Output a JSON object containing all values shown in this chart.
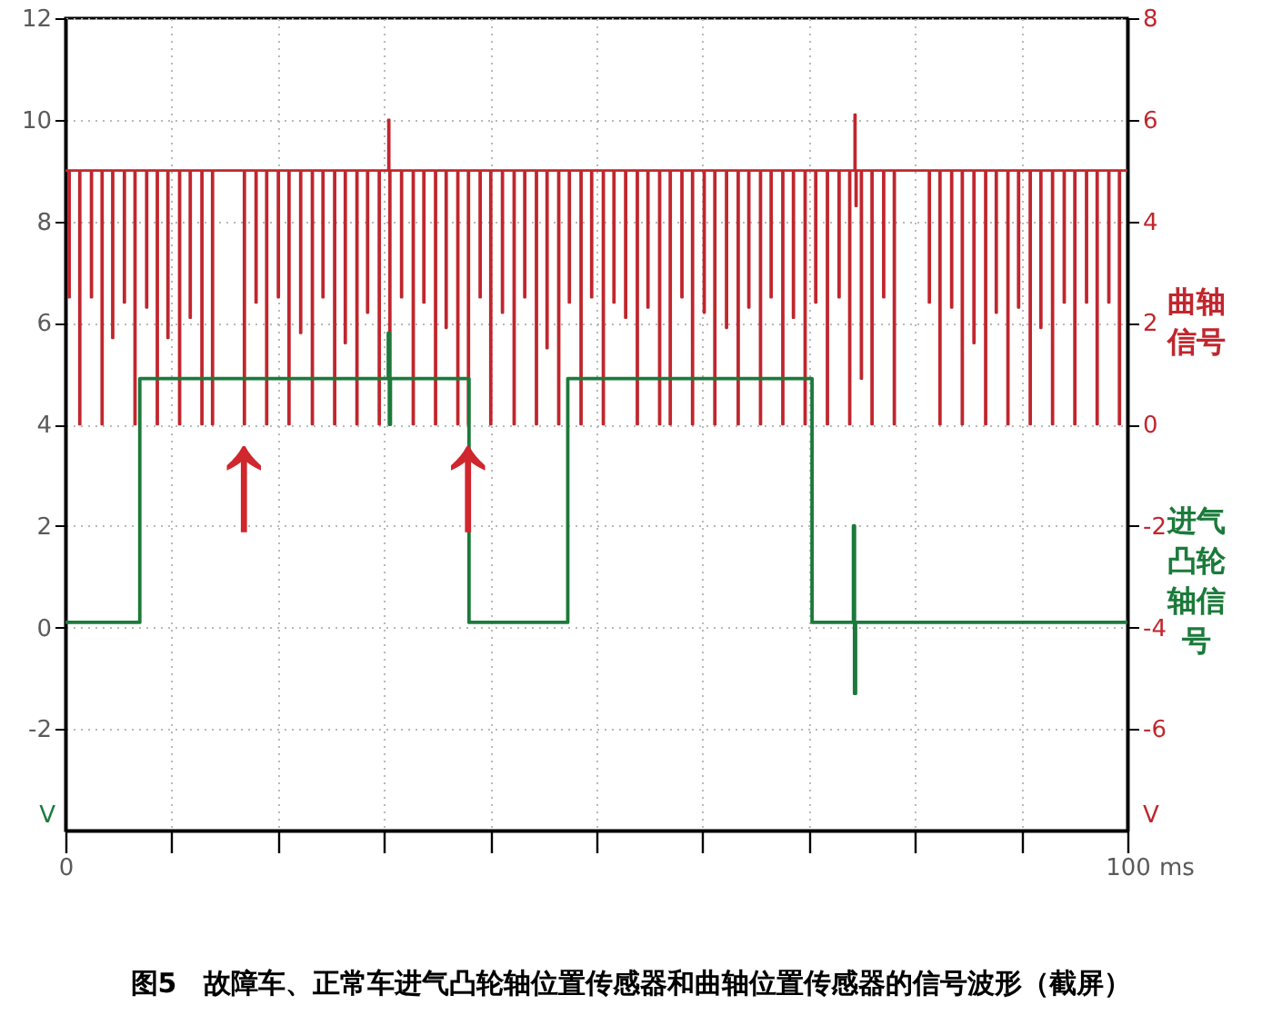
{
  "chart_data": {
    "type": "step",
    "title": "图5　故障车、正常车进气凸轮轴位置传感器和曲轴位置传感器的信号波形（截屏）",
    "xlabel": "ms",
    "ylabel": "V",
    "y2label": "V",
    "xlim": [
      0,
      100
    ],
    "xticks": [
      0,
      {
        "value": 10,
        "label": null
      },
      {
        "value": 20,
        "label": null
      },
      {
        "value": 30,
        "label": null
      },
      {
        "value": 40,
        "label": null
      },
      {
        "value": 50,
        "label": null
      },
      {
        "value": 60,
        "label": null
      },
      {
        "value": 70,
        "label": null
      },
      {
        "value": 80,
        "label": null
      },
      {
        "value": 90,
        "label": null
      },
      100
    ],
    "ylim": [
      -4,
      12
    ],
    "yticks": [
      -2,
      0,
      2,
      4,
      6,
      8,
      10,
      12
    ],
    "y2lim": [
      -8,
      8
    ],
    "y2ticks": [
      -6,
      -4,
      -2,
      0,
      2,
      4,
      6,
      8
    ],
    "grid": true,
    "legend": "right",
    "annotations": [
      {
        "text": "↑",
        "x": 16.8,
        "y": 4.0
      },
      {
        "text": "↑",
        "x": 37.9,
        "y": 4.0
      }
    ],
    "series": [
      {
        "name": "曲轴信号",
        "color": "#c0262d",
        "axis": "y2",
        "x": [
          0,
          0.3,
          0.4,
          1.3,
          1.4,
          2.4,
          2.5,
          3.4,
          3.5,
          4.4,
          4.5,
          5.5,
          5.6,
          6.5,
          6.6,
          7.6,
          7.7,
          8.6,
          8.7,
          9.6,
          9.7,
          10.7,
          10.8,
          11.7,
          11.8,
          12.8,
          12.9,
          13.8,
          13.9,
          16.8,
          16.9,
          17.9,
          18.0,
          18.9,
          19.0,
          20.0,
          20.1,
          21.0,
          21.1,
          22.1,
          22.2,
          23.2,
          23.3,
          24.2,
          24.3,
          25.3,
          25.4,
          26.3,
          26.4,
          27.4,
          27.5,
          28.4,
          28.5,
          29.5,
          29.6,
          30.4,
          30.5,
          30.6,
          31.6,
          31.7,
          32.7,
          32.8,
          33.7,
          33.8,
          34.8,
          34.9,
          35.8,
          35.9,
          36.9,
          37.0,
          37.9,
          38.0,
          39.0,
          39.1,
          40.0,
          40.1,
          41.1,
          41.2,
          42.2,
          42.3,
          43.2,
          43.3,
          44.3,
          44.4,
          45.3,
          45.4,
          46.4,
          46.5,
          47.4,
          47.5,
          48.5,
          48.6,
          49.5,
          49.6,
          50.6,
          50.7,
          51.6,
          51.7,
          52.7,
          52.8,
          53.8,
          53.9,
          54.8,
          54.9,
          55.9,
          56.0,
          56.9,
          57.0,
          58.0,
          58.1,
          59.0,
          59.1,
          60.1,
          60.2,
          61.1,
          61.2,
          62.2,
          62.3,
          63.3,
          63.4,
          64.3,
          64.4,
          65.4,
          65.5,
          66.4,
          66.5,
          67.5,
          67.6,
          68.5,
          68.6,
          69.6,
          69.7,
          70.6,
          70.7,
          71.7,
          71.8,
          72.8,
          72.9,
          73.8,
          73.9,
          74.3,
          74.4,
          74.5,
          74.9,
          75.0,
          75.9,
          76.0,
          77.0,
          77.1,
          78.0,
          78.1,
          81.3,
          81.4,
          82.3,
          82.4,
          83.4,
          83.5,
          84.4,
          84.5,
          85.5,
          85.6,
          86.6,
          86.7,
          87.6,
          87.7,
          88.7,
          88.8,
          89.7,
          89.8,
          90.8,
          90.9,
          91.8,
          91.9,
          92.9,
          93.0,
          94.0,
          94.1,
          95.0,
          95.1,
          96.1,
          96.2,
          97.1,
          97.2,
          98.2,
          98.3,
          99.2,
          99.3,
          100
        ],
        "values": [
          5.0,
          2.5,
          5.0,
          0,
          5.0,
          2.5,
          5.0,
          0,
          5.0,
          1.7,
          5.0,
          2.4,
          5.0,
          0,
          5.0,
          2.3,
          5.0,
          0,
          5.0,
          1.7,
          5.0,
          0,
          5.0,
          2.1,
          5.0,
          0,
          5.0,
          0,
          5.0,
          0,
          5.0,
          2.4,
          5.0,
          0,
          5.0,
          2.5,
          5.0,
          0,
          5.0,
          1.8,
          5.0,
          0,
          5.0,
          2.5,
          5.0,
          0,
          5.0,
          1.6,
          5.0,
          0,
          5.0,
          2.2,
          5.0,
          0,
          5.0,
          6.0,
          0,
          5.0,
          2.5,
          5.0,
          0,
          5.0,
          2.4,
          5.0,
          0,
          5.0,
          1.9,
          5.0,
          0,
          5.0,
          0,
          5.0,
          2.5,
          5.0,
          0,
          5.0,
          2.2,
          5.0,
          0,
          5.0,
          2.5,
          5.0,
          0,
          5.0,
          1.5,
          5.0,
          0,
          5.0,
          2.4,
          5.0,
          0,
          5.0,
          2.5,
          5.0,
          0,
          5.0,
          2.4,
          5.0,
          2.1,
          5.0,
          0,
          5.0,
          2.3,
          5.0,
          0,
          5.0,
          0,
          5.0,
          2.5,
          5.0,
          0,
          5.0,
          2.2,
          5.0,
          0,
          5.0,
          1.9,
          5.0,
          0,
          5.0,
          2.3,
          5.0,
          0,
          5.0,
          2.5,
          5.0,
          0,
          5.0,
          2.1,
          5.0,
          0,
          5.0,
          2.4,
          5.0,
          0,
          5.0,
          2.5,
          5.0,
          0,
          5.0,
          6.1,
          4.3,
          5.0,
          0.9,
          5.0,
          0,
          5.0,
          2.5,
          5.0,
          0,
          5.0,
          2.4,
          5.0,
          0,
          5.0,
          2.3,
          5.0,
          0,
          5.0,
          1.6,
          5.0,
          0,
          5.0,
          2.2,
          5.0,
          0,
          5.0,
          2.3,
          5.0,
          0,
          5.0,
          1.9,
          5.0,
          0,
          5.0,
          2.4,
          5.0,
          0,
          5.0,
          2.4,
          5.0,
          0,
          5.0,
          2.4,
          5.0,
          0,
          5.0,
          5.0
        ]
      },
      {
        "name": "进气凸轮轴信号",
        "color": "#1b7a3a",
        "axis": "y",
        "x": [
          0,
          7.0,
          30.4,
          30.5,
          30.6,
          38.0,
          47.3,
          70.3,
          74.2,
          74.3,
          74.4,
          100
        ],
        "values": [
          0.1,
          4.9,
          5.8,
          4.0,
          4.9,
          0.1,
          4.9,
          0.1,
          2.0,
          -1.3,
          0.1,
          0.1
        ]
      }
    ]
  }
}
